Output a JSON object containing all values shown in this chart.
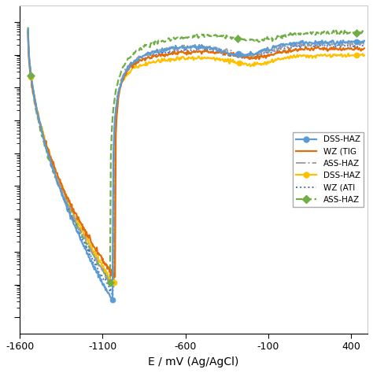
{
  "xlabel": "E / mV (Ag/AgCl)",
  "xlim": [
    -1600,
    500
  ],
  "ylim": [
    -9.5,
    0.5
  ],
  "xticks": [
    -1600,
    -1100,
    -600,
    -100,
    400
  ],
  "xtick_labels": [
    "-1600",
    "-1100",
    "-600",
    "-100",
    "400"
  ],
  "background_color": "#ffffff",
  "legend_labels": [
    "DSS-HAZ",
    "WZ (TIG",
    "ASS-HAZ",
    "DSS-HAZ",
    "WZ (ATI",
    "ASS-HAZ"
  ],
  "series_colors": [
    "#5B9BD5",
    "#E36C0A",
    "#A0A0A0",
    "#FFC000",
    "#4472C4",
    "#70AD47"
  ],
  "series_styles": [
    "solid",
    "solid",
    "dashdot",
    "solid",
    "dotted",
    "dashed"
  ],
  "series_markers": [
    "o",
    null,
    null,
    "o",
    null,
    "D"
  ],
  "series_widths": [
    1.6,
    1.6,
    1.4,
    1.6,
    1.4,
    1.6
  ],
  "curve_params": [
    {
      "x_start": -1550,
      "x_pit": -1040,
      "x_end": 480,
      "y_start": -0.3,
      "y_pit": -8.5,
      "y_end": -0.6,
      "seed": 1,
      "pit_sharpness": 0.55,
      "rise_shape": 0.35,
      "shoulder_x": -250,
      "shoulder_depth": 1.2
    },
    {
      "x_start": -1550,
      "x_pit": -1025,
      "x_end": 480,
      "y_start": -0.3,
      "y_pit": -7.8,
      "y_end": -0.8,
      "seed": 2,
      "pit_sharpness": 0.5,
      "rise_shape": 0.32,
      "shoulder_x": -180,
      "shoulder_depth": 0.8
    },
    {
      "x_start": -1550,
      "x_pit": -1033,
      "x_end": 480,
      "y_start": -0.3,
      "y_pit": -8.1,
      "y_end": -0.65,
      "seed": 3,
      "pit_sharpness": 0.52,
      "rise_shape": 0.33,
      "shoulder_x": -220,
      "shoulder_depth": 1.0
    },
    {
      "x_start": -1550,
      "x_pit": -1030,
      "x_end": 480,
      "y_start": -0.3,
      "y_pit": -8.0,
      "y_end": -1.0,
      "seed": 4,
      "pit_sharpness": 0.52,
      "rise_shape": 0.3,
      "shoulder_x": -200,
      "shoulder_depth": 0.9
    },
    {
      "x_start": -1550,
      "x_pit": -1038,
      "x_end": 480,
      "y_start": -0.3,
      "y_pit": -8.3,
      "y_end": -0.7,
      "seed": 5,
      "pit_sharpness": 0.53,
      "rise_shape": 0.34,
      "shoulder_x": -230,
      "shoulder_depth": 1.1
    },
    {
      "x_start": -1550,
      "x_pit": -1055,
      "x_end": 480,
      "y_start": -0.15,
      "y_pit": -7.9,
      "y_end": -0.3,
      "seed": 6,
      "pit_sharpness": 0.48,
      "rise_shape": 0.38,
      "shoulder_x": -160,
      "shoulder_depth": 0.7
    }
  ]
}
